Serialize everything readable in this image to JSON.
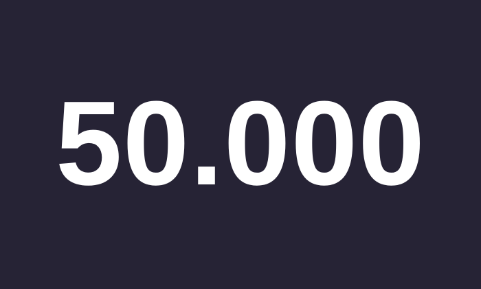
{
  "display": {
    "value": "50.000"
  },
  "colors": {
    "background": "#262335",
    "text": "#ffffff"
  }
}
